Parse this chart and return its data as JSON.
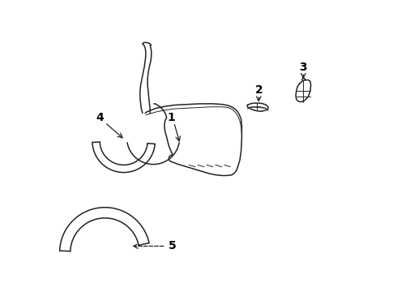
{
  "bg_color": "#ffffff",
  "line_color": "#222222",
  "label_color": "#000000",
  "lw": 1.1,
  "lw_thin": 0.7,
  "fs": 10
}
